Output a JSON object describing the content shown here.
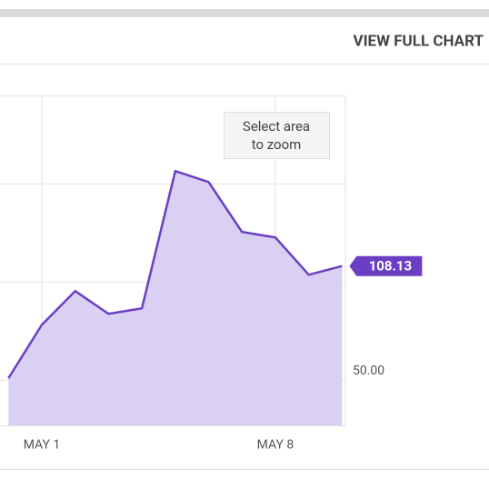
{
  "header": {
    "link": "VIEW FULL CHART"
  },
  "chart_data": {
    "type": "area",
    "categories": [
      null,
      "MAY 1",
      null,
      null,
      null,
      null,
      null,
      null,
      "MAY 8",
      null,
      null
    ],
    "values": [
      51,
      78.2,
      95.4,
      83.8,
      86.6,
      156.5,
      150.9,
      125.5,
      122.7,
      103.7,
      108.13
    ],
    "value_labels": [
      null,
      null,
      null,
      null,
      null,
      null,
      null,
      null,
      null,
      null,
      "108.13"
    ],
    "color": "#6b3fc4",
    "fill": "#d8cdf2",
    "ylim": [
      27,
      195
    ],
    "yticks": [
      {
        "value": 50,
        "label": "50.00"
      }
    ],
    "ygrid": [
      100,
      150
    ],
    "zoom_hint": [
      "Select area",
      "to zoom"
    ]
  }
}
